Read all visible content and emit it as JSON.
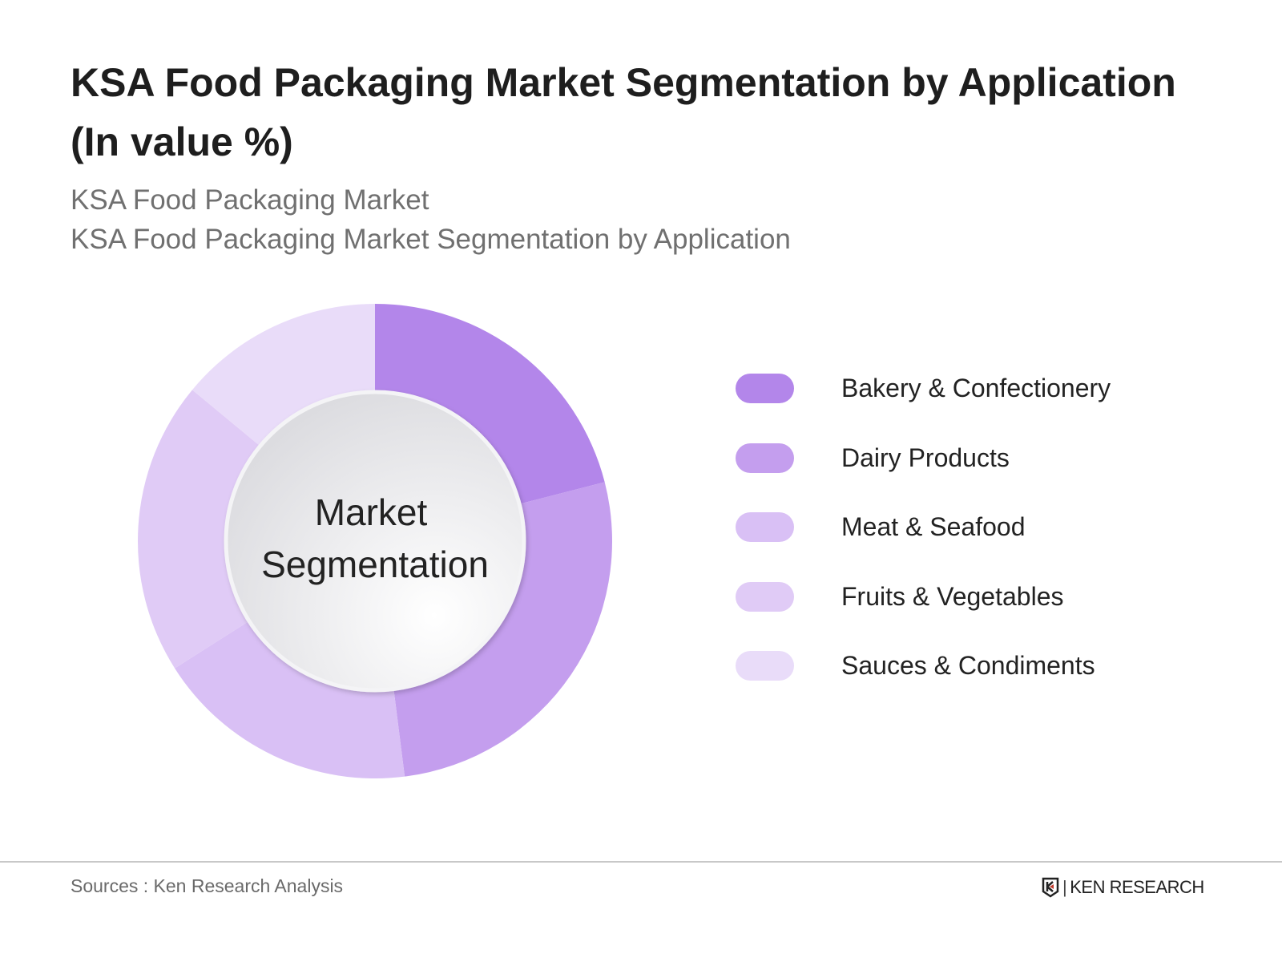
{
  "title": "KSA Food Packaging Market Segmentation by Application (In value %)",
  "subtitle_lines": [
    "KSA Food Packaging Market",
    "KSA Food Packaging Market Segmentation by Application"
  ],
  "center_label_lines": [
    "Market",
    "Segmentation"
  ],
  "source": "Sources : Ken Research Analysis",
  "logo_text": "KEN RESEARCH",
  "chart_data": {
    "type": "pie",
    "variant": "donut",
    "start": "top, clockwise",
    "categories": [
      "Bakery & Confectionery",
      "Dairy Products",
      "Meat & Seafood",
      "Fruits & Vegetables",
      "Sauces & Condiments"
    ],
    "values": [
      21,
      27,
      18,
      20,
      14
    ],
    "unit": "%",
    "colors": [
      "#b386ea",
      "#c49eee",
      "#d9c0f5",
      "#e0cbf6",
      "#e9dcf9"
    ],
    "legend_position": "right"
  }
}
